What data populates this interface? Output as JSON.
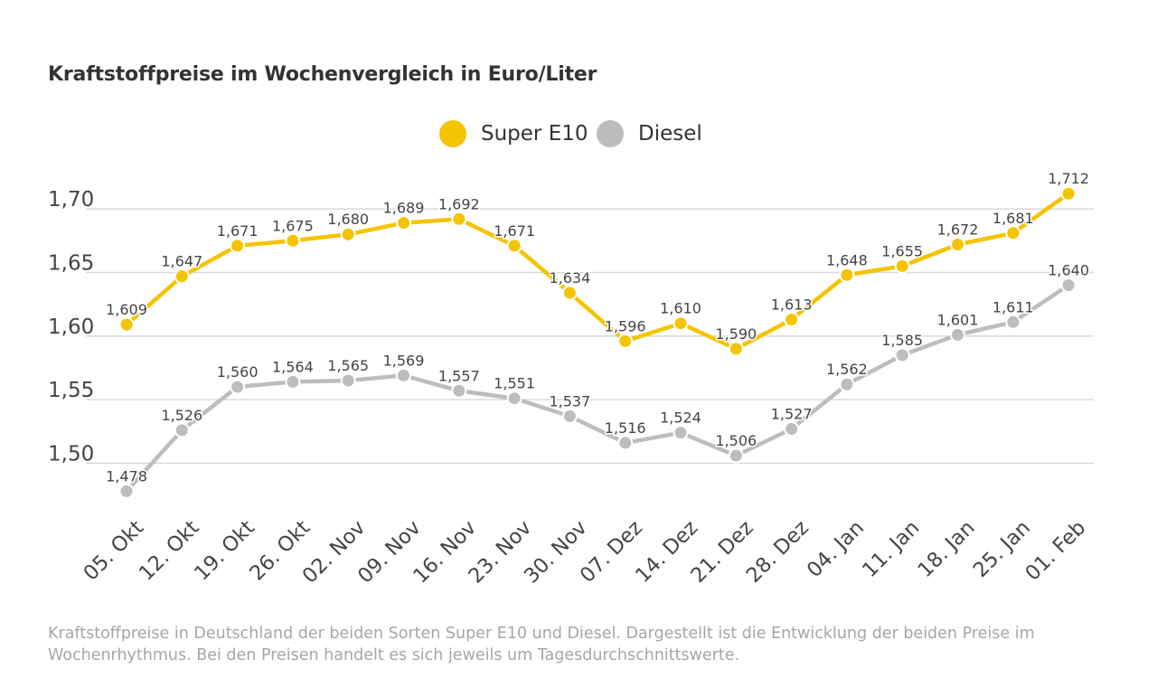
{
  "title": "Kraftstoffpreise im Wochenvergleich in Euro/Liter",
  "footnote": "Kraftstoffpreise in Deutschland der beiden Sorten Super E10 und Diesel. Dargestellt ist die Entwicklung der beiden Preise im Wochenrhythmus. Bei den Preisen handelt es sich jeweils um Tagesdurchschnittswerte.",
  "colors": {
    "super_e10": "#f5c400",
    "diesel": "#bdbdbd",
    "grid": "#d9d9d9",
    "text": "#333333"
  },
  "chart_data": {
    "type": "line",
    "title": "Kraftstoffpreise im Wochenvergleich in Euro/Liter",
    "xlabel": "",
    "ylabel": "",
    "categories": [
      "05. Okt",
      "12. Okt",
      "19. Okt",
      "26. Okt",
      "02. Nov",
      "09. Nov",
      "16. Nov",
      "23. Nov",
      "30. Nov",
      "07. Dez",
      "14. Dez",
      "21. Dez",
      "28. Dez",
      "04. Jan",
      "11. Jan",
      "18. Jan",
      "25. Jan",
      "01. Feb"
    ],
    "series": [
      {
        "name": "Super E10",
        "color": "#f5c400",
        "values": [
          1.609,
          1.647,
          1.671,
          1.675,
          1.68,
          1.689,
          1.692,
          1.671,
          1.634,
          1.596,
          1.61,
          1.59,
          1.613,
          1.648,
          1.655,
          1.672,
          1.681,
          1.712
        ],
        "labels": [
          "1,609",
          "1,647",
          "1,671",
          "1,675",
          "1,680",
          "1,689",
          "1,692",
          "1,671",
          "1,634",
          "1,596",
          "1,610",
          "1,590",
          "1,613",
          "1,648",
          "1,655",
          "1,672",
          "1,681",
          "1,712"
        ]
      },
      {
        "name": "Diesel",
        "color": "#bdbdbd",
        "values": [
          1.478,
          1.526,
          1.56,
          1.564,
          1.565,
          1.569,
          1.557,
          1.551,
          1.537,
          1.516,
          1.524,
          1.506,
          1.527,
          1.562,
          1.585,
          1.601,
          1.611,
          1.64
        ],
        "labels": [
          "1,478",
          "1,526",
          "1,560",
          "1,564",
          "1,565",
          "1,569",
          "1,557",
          "1,551",
          "1,537",
          "1,516",
          "1,524",
          "1,506",
          "1,527",
          "1,562",
          "1,585",
          "1,601",
          "1,611",
          "1,640"
        ]
      }
    ],
    "y_ticks": [
      1.5,
      1.55,
      1.6,
      1.65,
      1.7
    ],
    "y_tick_labels": [
      "1,50",
      "1,55",
      "1,60",
      "1,65",
      "1,70"
    ],
    "ylim": [
      1.479,
      1.715
    ],
    "grid": true,
    "legend_position": "top-center"
  }
}
